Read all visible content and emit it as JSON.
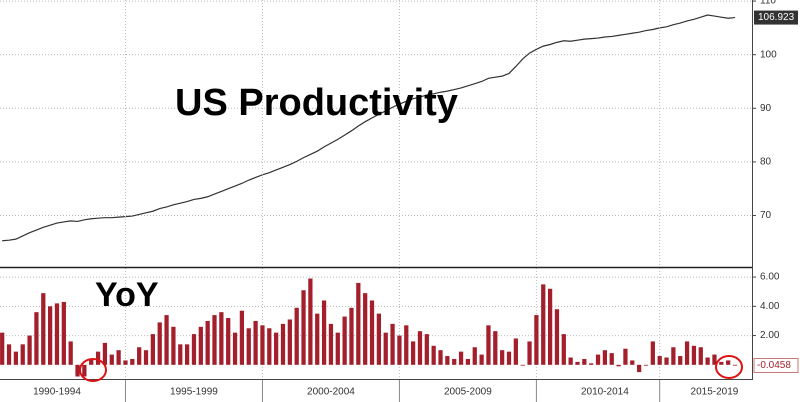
{
  "chart_data": [
    {
      "type": "line",
      "title": "US Productivity",
      "color": "#333333",
      "x": [
        1990.5,
        1990.75,
        1991,
        1991.25,
        1991.5,
        1991.75,
        1992,
        1992.25,
        1992.5,
        1992.75,
        1993,
        1993.25,
        1993.5,
        1993.75,
        1994,
        1994.25,
        1994.5,
        1994.75,
        1995,
        1995.25,
        1995.5,
        1995.75,
        1996,
        1996.25,
        1996.5,
        1996.75,
        1997,
        1997.25,
        1997.5,
        1997.75,
        1998,
        1998.25,
        1998.5,
        1998.75,
        1999,
        1999.25,
        1999.5,
        1999.75,
        2000,
        2000.25,
        2000.5,
        2000.75,
        2001,
        2001.25,
        2001.5,
        2001.75,
        2002,
        2002.25,
        2002.5,
        2002.75,
        2003,
        2003.25,
        2003.5,
        2003.75,
        2004,
        2004.25,
        2004.5,
        2004.75,
        2005,
        2005.25,
        2005.5,
        2005.75,
        2006,
        2006.25,
        2006.5,
        2006.75,
        2007,
        2007.25,
        2007.5,
        2007.75,
        2008,
        2008.25,
        2008.5,
        2008.75,
        2009,
        2009.25,
        2009.5,
        2009.75,
        2010,
        2010.25,
        2010.5,
        2010.75,
        2011,
        2011.25,
        2011.5,
        2011.75,
        2012,
        2012.25,
        2012.5,
        2012.75,
        2013,
        2013.25,
        2013.5,
        2013.75,
        2014,
        2014.25,
        2014.5,
        2014.75,
        2015,
        2015.25,
        2015.5,
        2015.75,
        2016,
        2016.25,
        2016.5,
        2016.75,
        2017,
        2017.25
      ],
      "values": [
        65.3,
        65.4,
        65.6,
        66.2,
        66.8,
        67.3,
        67.8,
        68.2,
        68.6,
        68.8,
        69.0,
        68.9,
        69.2,
        69.4,
        69.5,
        69.6,
        69.6,
        69.7,
        69.8,
        69.9,
        70.2,
        70.5,
        70.8,
        71.3,
        71.6,
        72.0,
        72.3,
        72.6,
        73.0,
        73.2,
        73.5,
        74.0,
        74.5,
        75.0,
        75.5,
        76.0,
        76.6,
        77.1,
        77.6,
        78.0,
        78.5,
        79.0,
        79.5,
        80.1,
        80.8,
        81.4,
        82.0,
        82.8,
        83.5,
        84.2,
        85.0,
        85.8,
        86.7,
        87.5,
        88.2,
        88.9,
        89.5,
        90.2,
        90.8,
        91.3,
        91.8,
        92.1,
        92.5,
        92.7,
        93.0,
        93.2,
        93.5,
        93.8,
        94.2,
        94.6,
        95.0,
        95.6,
        95.8,
        96.0,
        96.5,
        97.8,
        99.2,
        100.3,
        101.0,
        101.6,
        101.9,
        102.3,
        102.6,
        102.5,
        102.7,
        102.9,
        103.0,
        103.1,
        103.3,
        103.4,
        103.6,
        103.8,
        104.0,
        104.2,
        104.5,
        104.7,
        105.0,
        105.2,
        105.6,
        105.9,
        106.3,
        106.6,
        107.0,
        107.4,
        107.2,
        107.0,
        106.8,
        106.923
      ],
      "xlim": [
        1990.42,
        2017.87
      ],
      "ylim": [
        60.4,
        110.2
      ],
      "yticks": [
        70,
        80,
        90,
        100,
        110
      ],
      "grid": true
    },
    {
      "type": "bar",
      "title": "YoY",
      "color": "#a31f2c",
      "x": [
        1990.5,
        1990.75,
        1991,
        1991.25,
        1991.5,
        1991.75,
        1992,
        1992.25,
        1992.5,
        1992.75,
        1993,
        1993.25,
        1993.5,
        1993.75,
        1994,
        1994.25,
        1994.5,
        1994.75,
        1995,
        1995.25,
        1995.5,
        1995.75,
        1996,
        1996.25,
        1996.5,
        1996.75,
        1997,
        1997.25,
        1997.5,
        1997.75,
        1998,
        1998.25,
        1998.5,
        1998.75,
        1999,
        1999.25,
        1999.5,
        1999.75,
        2000,
        2000.25,
        2000.5,
        2000.75,
        2001,
        2001.25,
        2001.5,
        2001.75,
        2002,
        2002.25,
        2002.5,
        2002.75,
        2003,
        2003.25,
        2003.5,
        2003.75,
        2004,
        2004.25,
        2004.5,
        2004.75,
        2005,
        2005.25,
        2005.5,
        2005.75,
        2006,
        2006.25,
        2006.5,
        2006.75,
        2007,
        2007.25,
        2007.5,
        2007.75,
        2008,
        2008.25,
        2008.5,
        2008.75,
        2009,
        2009.25,
        2009.5,
        2009.75,
        2010,
        2010.25,
        2010.5,
        2010.75,
        2011,
        2011.25,
        2011.5,
        2011.75,
        2012,
        2012.25,
        2012.5,
        2012.75,
        2013,
        2013.25,
        2013.5,
        2013.75,
        2014,
        2014.25,
        2014.5,
        2014.75,
        2015,
        2015.25,
        2015.5,
        2015.75,
        2016,
        2016.25,
        2016.5,
        2016.75,
        2017,
        2017.25
      ],
      "values": [
        2.2,
        1.4,
        0.9,
        1.4,
        2.0,
        3.6,
        4.9,
        4.0,
        4.2,
        4.3,
        1.6,
        -0.8,
        -0.8,
        0.4,
        0.9,
        1.5,
        0.7,
        1.0,
        0.3,
        0.4,
        1.2,
        1.0,
        2.1,
        2.9,
        3.4,
        2.6,
        1.4,
        1.4,
        2.1,
        2.6,
        3.0,
        3.4,
        3.6,
        3.2,
        2.2,
        3.7,
        2.5,
        3.0,
        2.7,
        2.5,
        2.2,
        2.8,
        3.1,
        3.9,
        5.1,
        5.9,
        3.5,
        4.4,
        2.8,
        2.2,
        3.3,
        3.9,
        5.6,
        4.9,
        4.4,
        3.5,
        2.2,
        2.8,
        2.0,
        2.7,
        1.6,
        2.3,
        2.1,
        1.3,
        1.0,
        0.6,
        0.4,
        0.9,
        0.4,
        1.2,
        0.7,
        2.7,
        2.3,
        1.0,
        0.9,
        1.8,
        0.0,
        1.6,
        3.4,
        5.5,
        5.2,
        3.8,
        2.1,
        0.5,
        0.2,
        0.4,
        0.1,
        0.7,
        1.0,
        0.8,
        -0.1,
        1.1,
        0.3,
        -0.5,
        0.0,
        1.6,
        0.6,
        0.5,
        1.2,
        0.6,
        1.6,
        1.3,
        1.2,
        0.5,
        0.7,
        0.2,
        0.3,
        -0.0458
      ],
      "xlim": [
        1990.42,
        2017.87
      ],
      "ylim": [
        -0.97,
        6.62
      ],
      "yticks": [
        {
          "value": 2,
          "label": "2.00"
        },
        {
          "value": 4,
          "label": "4.00"
        },
        {
          "value": 6,
          "label": "6.00"
        }
      ],
      "xticks": [
        {
          "value": 1992.5,
          "label": "1990-1994"
        },
        {
          "value": 1997.5,
          "label": "1995-1999"
        },
        {
          "value": 2002.5,
          "label": "2000-2004"
        },
        {
          "value": 2007.5,
          "label": "2005-2009"
        },
        {
          "value": 2012.5,
          "label": "2010-2014"
        },
        {
          "value": 2016.5,
          "label": "2015-2019"
        }
      ],
      "grid": true
    }
  ]
}
